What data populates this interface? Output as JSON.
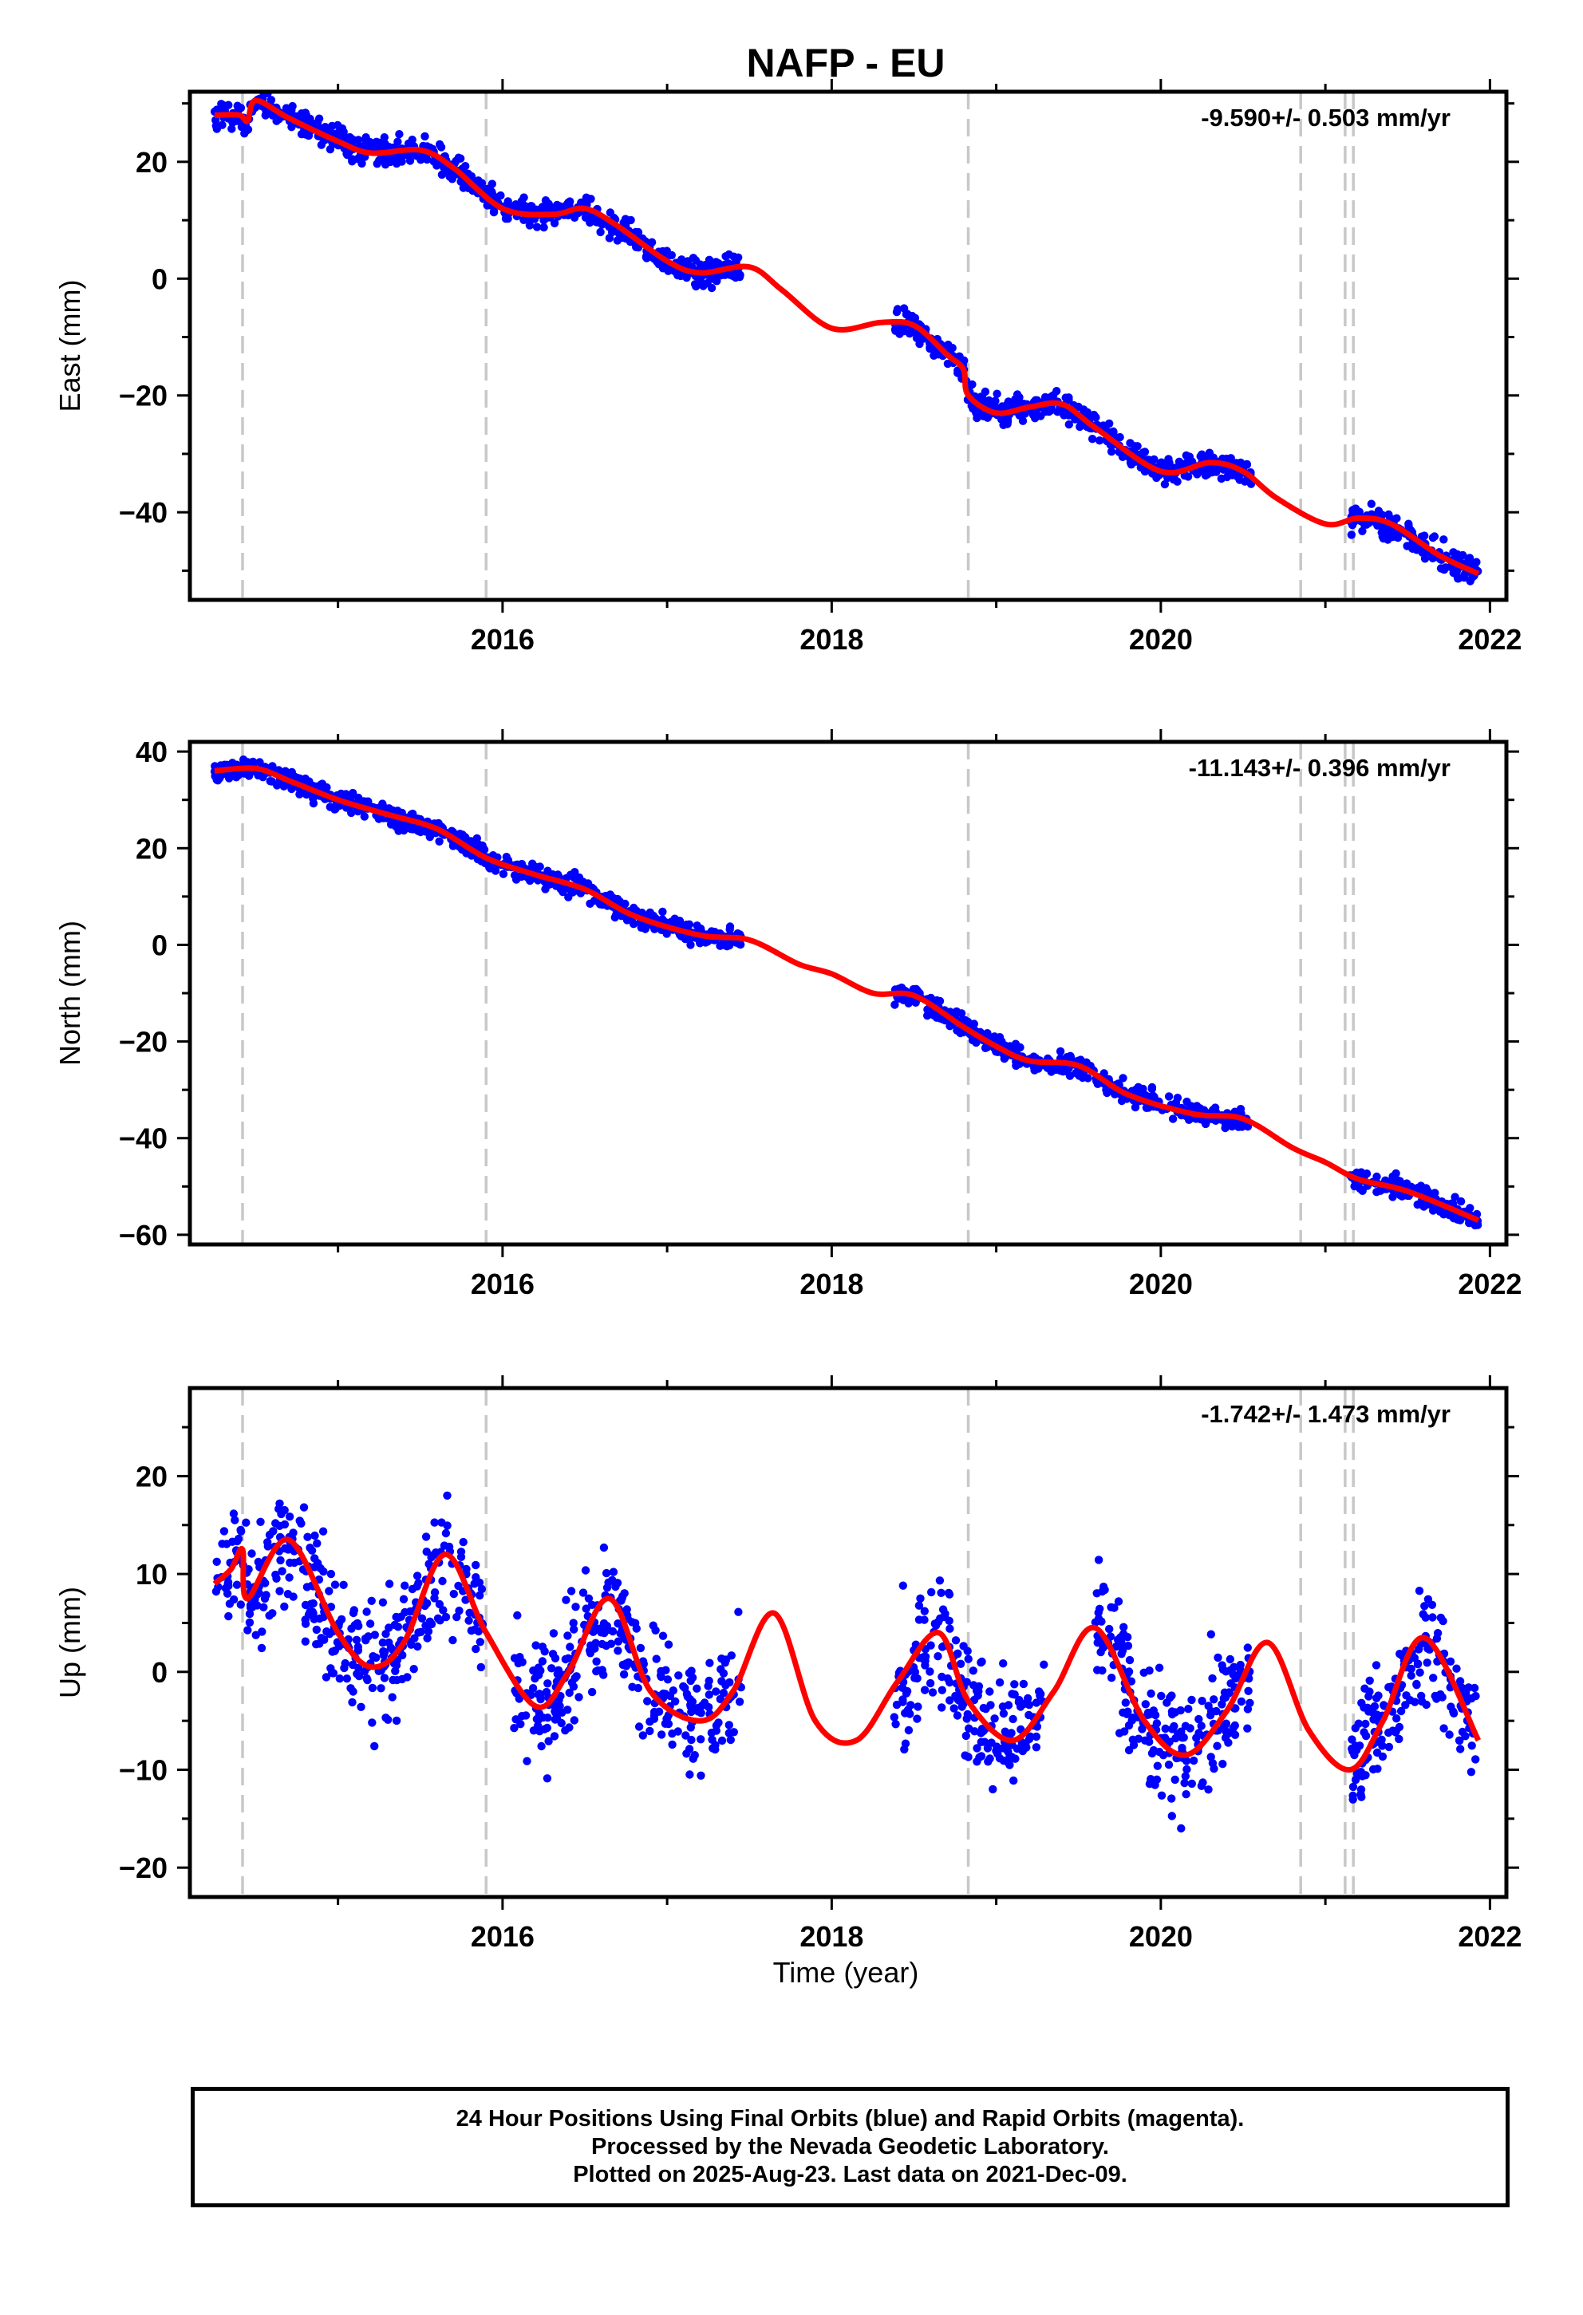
{
  "title": "NAFP - EU",
  "x_axis_label": "Time (year)",
  "caption": {
    "line1": "24 Hour Positions Using Final Orbits (blue) and Rapid Orbits (magenta).",
    "line2": "Processed by the Nevada Geodetic Laboratory.",
    "line3": "Plotted on 2025-Aug-23. Last data on 2021-Dec-09."
  },
  "colors": {
    "observations": "#0000ff",
    "model": "#ff0000",
    "events": "#c8c8c8",
    "frame": "#000000"
  },
  "chart_data": [
    {
      "type": "scatter",
      "ylabel": "East (mm)",
      "annotation": "-9.590+/- 0.503 mm/yr",
      "xlim": [
        2014.1,
        2022.1
      ],
      "ylim": [
        -55,
        32
      ],
      "xticks": [
        2016,
        2018,
        2020,
        2022
      ],
      "yticks": [
        20,
        0,
        -20,
        -40
      ],
      "event_lines": [
        2014.42,
        2015.9,
        2018.83,
        2020.85,
        2021.12,
        2021.17
      ],
      "model_fit": [
        [
          2014.25,
          28.0
        ],
        [
          2014.4,
          28.0
        ],
        [
          2014.45,
          27.0
        ],
        [
          2014.5,
          30.5
        ],
        [
          2014.7,
          27.5
        ],
        [
          2015.0,
          23.5
        ],
        [
          2015.2,
          21.5
        ],
        [
          2015.5,
          22.0
        ],
        [
          2015.7,
          19.0
        ],
        [
          2016.0,
          12.0
        ],
        [
          2016.3,
          11.0
        ],
        [
          2016.5,
          12.0
        ],
        [
          2016.7,
          9.0
        ],
        [
          2017.0,
          3.0
        ],
        [
          2017.2,
          1.0
        ],
        [
          2017.5,
          2.0
        ],
        [
          2017.7,
          -2.0
        ],
        [
          2018.0,
          -8.5
        ],
        [
          2018.3,
          -7.5
        ],
        [
          2018.5,
          -8.0
        ],
        [
          2018.7,
          -13.0
        ],
        [
          2018.8,
          -15.5
        ],
        [
          2018.83,
          -20.0
        ],
        [
          2019.0,
          -23.0
        ],
        [
          2019.2,
          -22.0
        ],
        [
          2019.4,
          -21.5
        ],
        [
          2019.6,
          -25.5
        ],
        [
          2020.0,
          -33.0
        ],
        [
          2020.3,
          -31.5
        ],
        [
          2020.5,
          -33.0
        ],
        [
          2020.7,
          -37.5
        ],
        [
          2021.0,
          -42.0
        ],
        [
          2021.2,
          -41.0
        ],
        [
          2021.4,
          -42.0
        ],
        [
          2021.7,
          -47.5
        ],
        [
          2021.93,
          -50.5
        ]
      ],
      "data_segments": [
        [
          2014.25,
          2017.45,
          1.6
        ],
        [
          2018.38,
          2020.55,
          1.6
        ],
        [
          2021.15,
          2021.93,
          1.6
        ]
      ]
    },
    {
      "type": "scatter",
      "ylabel": "North (mm)",
      "annotation": "-11.143+/- 0.396 mm/yr",
      "xlim": [
        2014.1,
        2022.1
      ],
      "ylim": [
        -62,
        42
      ],
      "xticks": [
        2016,
        2018,
        2020,
        2022
      ],
      "yticks": [
        40,
        20,
        0,
        -20,
        -40,
        -60
      ],
      "event_lines": [
        2014.42,
        2015.9,
        2018.83,
        2020.85,
        2021.12,
        2021.17
      ],
      "model_fit": [
        [
          2014.25,
          36.0
        ],
        [
          2014.5,
          36.5
        ],
        [
          2014.7,
          34.0
        ],
        [
          2015.0,
          30.0
        ],
        [
          2015.3,
          27.0
        ],
        [
          2015.6,
          24.0
        ],
        [
          2015.9,
          18.0
        ],
        [
          2016.2,
          14.5
        ],
        [
          2016.5,
          11.5
        ],
        [
          2016.8,
          6.0
        ],
        [
          2017.2,
          2.0
        ],
        [
          2017.5,
          1.0
        ],
        [
          2017.8,
          -4.0
        ],
        [
          2018.0,
          -6.0
        ],
        [
          2018.25,
          -10.0
        ],
        [
          2018.5,
          -10.5
        ],
        [
          2018.8,
          -17.0
        ],
        [
          2019.0,
          -21.0
        ],
        [
          2019.2,
          -24.0
        ],
        [
          2019.5,
          -25.0
        ],
        [
          2019.8,
          -31.0
        ],
        [
          2020.2,
          -35.0
        ],
        [
          2020.5,
          -36.0
        ],
        [
          2020.8,
          -42.0
        ],
        [
          2021.0,
          -45.0
        ],
        [
          2021.2,
          -48.5
        ],
        [
          2021.5,
          -51.0
        ],
        [
          2021.93,
          -57.0
        ]
      ],
      "data_segments": [
        [
          2014.25,
          2017.45,
          1.5
        ],
        [
          2018.38,
          2020.55,
          1.5
        ],
        [
          2021.15,
          2021.93,
          1.5
        ]
      ]
    },
    {
      "type": "scatter",
      "ylabel": "Up (mm)",
      "annotation": "-1.742+/- 1.473 mm/yr",
      "xlim": [
        2014.1,
        2022.1
      ],
      "ylim": [
        -23,
        29
      ],
      "xticks": [
        2016,
        2018,
        2020,
        2022
      ],
      "yticks": [
        20,
        10,
        0,
        -10,
        -20
      ],
      "event_lines": [
        2014.42,
        2015.9,
        2018.83,
        2020.85,
        2021.12,
        2021.17
      ],
      "model_fit": [
        [
          2014.25,
          9.0
        ],
        [
          2014.35,
          10.5
        ],
        [
          2014.42,
          12.5
        ],
        [
          2014.45,
          7.5
        ],
        [
          2014.7,
          13.5
        ],
        [
          2015.0,
          4.0
        ],
        [
          2015.2,
          0.5
        ],
        [
          2015.4,
          3.0
        ],
        [
          2015.65,
          12.0
        ],
        [
          2015.9,
          4.0
        ],
        [
          2016.2,
          -3.5
        ],
        [
          2016.4,
          0.0
        ],
        [
          2016.65,
          7.5
        ],
        [
          2016.9,
          -2.0
        ],
        [
          2017.2,
          -5.0
        ],
        [
          2017.4,
          -2.0
        ],
        [
          2017.65,
          6.0
        ],
        [
          2017.9,
          -5.0
        ],
        [
          2018.15,
          -7.0
        ],
        [
          2018.4,
          -1.0
        ],
        [
          2018.65,
          4.0
        ],
        [
          2018.83,
          -3.0
        ],
        [
          2019.1,
          -7.0
        ],
        [
          2019.35,
          -2.0
        ],
        [
          2019.6,
          4.5
        ],
        [
          2019.9,
          -5.0
        ],
        [
          2020.15,
          -8.5
        ],
        [
          2020.4,
          -4.0
        ],
        [
          2020.65,
          3.0
        ],
        [
          2020.9,
          -6.0
        ],
        [
          2021.15,
          -10.0
        ],
        [
          2021.35,
          -5.0
        ],
        [
          2021.6,
          3.5
        ],
        [
          2021.93,
          -7.0
        ]
      ],
      "data_segments": [
        [
          2014.25,
          2015.88,
          4.5
        ],
        [
          2016.05,
          2017.45,
          4.5
        ],
        [
          2018.38,
          2019.3,
          4.5
        ],
        [
          2019.6,
          2020.55,
          4.5
        ],
        [
          2021.15,
          2021.93,
          4.5
        ]
      ]
    }
  ]
}
